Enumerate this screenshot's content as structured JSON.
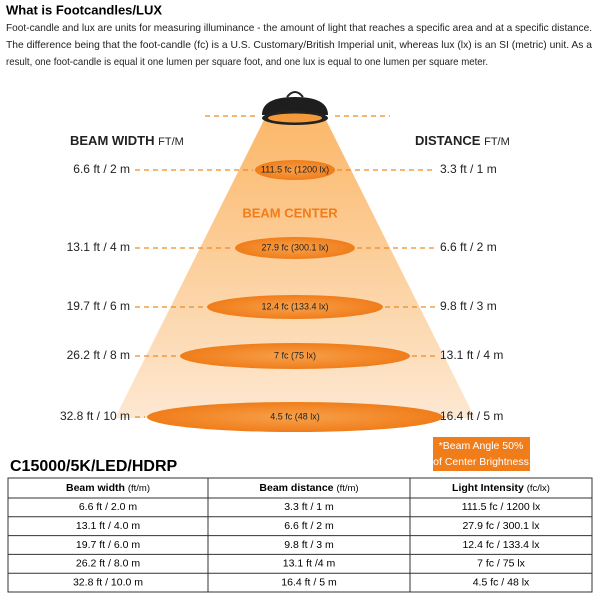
{
  "header": {
    "title": "What is Footcandles/LUX",
    "lines": [
      "Foot-candle and lux are units for measuring illuminance - the amount of light that reaches a specific area and at a specific distance.",
      "The difference being that the foot-candle (fc) is a U.S. Customary/British Imperial unit, whereas lux (lx) is an SI (metric) unit. As a",
      "result, one foot-candle is equal it one lumen per square foot, and one lux is equal to one lumen per square meter."
    ]
  },
  "diagram": {
    "beam_width_label": "BEAM WIDTH",
    "beam_width_unit": "FT/M",
    "distance_label": "DISTANCE",
    "distance_unit": "FT/M",
    "beam_center": "BEAM CENTER",
    "levels": [
      {
        "width": "6.6 ft / 2 m",
        "intensity": "111.5 fc (1200 lx)",
        "distance": "3.3 ft / 1 m"
      },
      {
        "width": "13.1 ft / 4 m",
        "intensity": "27.9 fc (300.1 lx)",
        "distance": "6.6 ft / 2 m"
      },
      {
        "width": "19.7 ft / 6 m",
        "intensity": "12.4 fc (133.4 lx)",
        "distance": "9.8 ft / 3 m"
      },
      {
        "width": "26.2 ft / 8 m",
        "intensity": "7 fc (75 lx)",
        "distance": "13.1 ft / 4 m"
      },
      {
        "width": "32.8 ft / 10 m",
        "intensity": "4.5 fc (48 lx)",
        "distance": "16.4 ft / 5 m"
      }
    ],
    "note": [
      "*Beam Angle 50%",
      "of Center Brightness"
    ]
  },
  "model": "C15000/5K/LED/HDRP",
  "table": {
    "headers": [
      {
        "text": "Beam width",
        "unit": "(ft/m)"
      },
      {
        "text": "Beam distance",
        "unit": "(ft/m)"
      },
      {
        "text": "Light Intensity",
        "unit": "(fc/lx)"
      }
    ],
    "rows": [
      [
        "6.6 ft / 2.0 m",
        "3.3 ft / 1 m",
        "111.5 fc / 1200 lx"
      ],
      [
        "13.1 ft / 4.0 m",
        "6.6 ft / 2 m",
        "27.9 fc / 300.1 lx"
      ],
      [
        "19.7 ft / 6.0 m",
        "9.8 ft / 3 m",
        "12.4 fc / 133.4 lx"
      ],
      [
        "26.2 ft / 8.0 m",
        "13.1 ft /4 m",
        "7 fc / 75 lx"
      ],
      [
        "32.8 ft / 10.0 m",
        "16.4 ft / 5 m",
        "4.5 fc / 48 lx"
      ]
    ]
  }
}
